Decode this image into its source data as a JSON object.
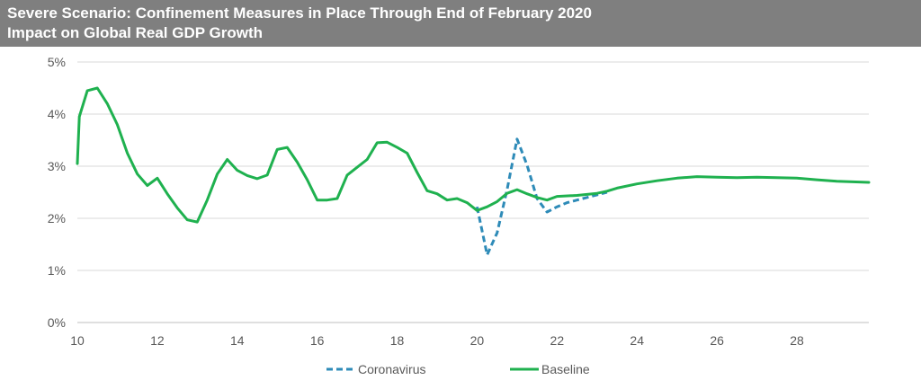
{
  "chart_data": {
    "type": "line",
    "title": "Severe Scenario: Confinement Measures in Place Through End of February 2020",
    "subtitle": "Impact on Global Real GDP Growth",
    "xlim": [
      10,
      29.8
    ],
    "ylim": [
      0,
      5
    ],
    "x_ticks": [
      "10",
      "12",
      "14",
      "16",
      "18",
      "20",
      "22",
      "24",
      "26",
      "28"
    ],
    "y_ticks": [
      "0%",
      "1%",
      "2%",
      "3%",
      "4%",
      "5%"
    ],
    "grid": "horizontal",
    "legend_position": "bottom",
    "series": [
      {
        "name": "Coronavirus",
        "color": "#2e8bb8",
        "style": "dashed",
        "points": [
          [
            20.0,
            2.22
          ],
          [
            20.25,
            1.3
          ],
          [
            20.5,
            1.72
          ],
          [
            20.75,
            2.55
          ],
          [
            21.0,
            3.52
          ],
          [
            21.25,
            3.02
          ],
          [
            21.5,
            2.38
          ],
          [
            21.75,
            2.12
          ],
          [
            22.0,
            2.22
          ],
          [
            22.25,
            2.3
          ],
          [
            22.5,
            2.35
          ],
          [
            22.75,
            2.4
          ],
          [
            23.0,
            2.45
          ],
          [
            23.25,
            2.5
          ]
        ]
      },
      {
        "name": "Baseline",
        "color": "#1fb14f",
        "style": "solid",
        "points": [
          [
            10.0,
            3.05
          ],
          [
            10.05,
            3.95
          ],
          [
            10.25,
            4.45
          ],
          [
            10.5,
            4.5
          ],
          [
            10.75,
            4.2
          ],
          [
            11.0,
            3.8
          ],
          [
            11.25,
            3.25
          ],
          [
            11.5,
            2.85
          ],
          [
            11.75,
            2.63
          ],
          [
            12.0,
            2.77
          ],
          [
            12.25,
            2.47
          ],
          [
            12.5,
            2.2
          ],
          [
            12.75,
            1.97
          ],
          [
            13.0,
            1.93
          ],
          [
            13.25,
            2.35
          ],
          [
            13.5,
            2.85
          ],
          [
            13.75,
            3.13
          ],
          [
            14.0,
            2.92
          ],
          [
            14.25,
            2.82
          ],
          [
            14.5,
            2.76
          ],
          [
            14.75,
            2.83
          ],
          [
            15.0,
            3.32
          ],
          [
            15.25,
            3.36
          ],
          [
            15.5,
            3.08
          ],
          [
            15.75,
            2.74
          ],
          [
            16.0,
            2.35
          ],
          [
            16.25,
            2.35
          ],
          [
            16.5,
            2.38
          ],
          [
            16.75,
            2.83
          ],
          [
            17.0,
            2.98
          ],
          [
            17.25,
            3.13
          ],
          [
            17.5,
            3.45
          ],
          [
            17.75,
            3.46
          ],
          [
            18.0,
            3.36
          ],
          [
            18.25,
            3.25
          ],
          [
            18.5,
            2.88
          ],
          [
            18.75,
            2.53
          ],
          [
            19.0,
            2.47
          ],
          [
            19.25,
            2.35
          ],
          [
            19.5,
            2.38
          ],
          [
            19.75,
            2.3
          ],
          [
            20.0,
            2.15
          ],
          [
            20.25,
            2.22
          ],
          [
            20.5,
            2.32
          ],
          [
            20.75,
            2.48
          ],
          [
            21.0,
            2.55
          ],
          [
            21.25,
            2.47
          ],
          [
            21.5,
            2.4
          ],
          [
            21.75,
            2.35
          ],
          [
            22.0,
            2.42
          ],
          [
            22.5,
            2.44
          ],
          [
            23.0,
            2.48
          ],
          [
            23.25,
            2.52
          ],
          [
            23.5,
            2.58
          ],
          [
            24.0,
            2.66
          ],
          [
            24.5,
            2.72
          ],
          [
            25.0,
            2.77
          ],
          [
            25.5,
            2.8
          ],
          [
            26.0,
            2.79
          ],
          [
            26.5,
            2.78
          ],
          [
            27.0,
            2.79
          ],
          [
            27.5,
            2.78
          ],
          [
            28.0,
            2.77
          ],
          [
            28.5,
            2.74
          ],
          [
            29.0,
            2.71
          ],
          [
            29.8,
            2.69
          ]
        ]
      }
    ]
  }
}
